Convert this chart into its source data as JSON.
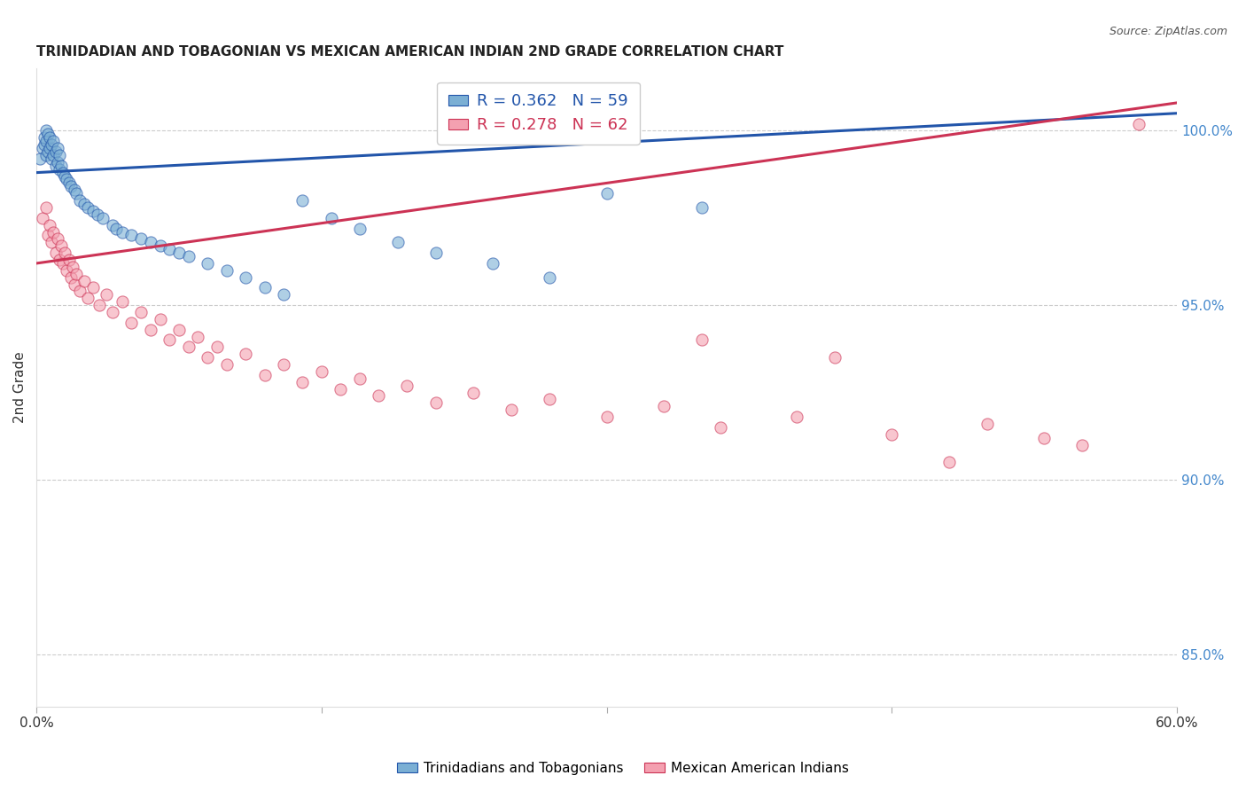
{
  "title": "TRINIDADIAN AND TOBAGONIAN VS MEXICAN AMERICAN INDIAN 2ND GRADE CORRELATION CHART",
  "source": "Source: ZipAtlas.com",
  "ylabel": "2nd Grade",
  "ylabel_right_ticks": [
    85.0,
    90.0,
    95.0,
    100.0
  ],
  "xlim": [
    0.0,
    60.0
  ],
  "ylim": [
    83.5,
    101.8
  ],
  "legend_blue_label": "Trinidadians and Tobagonians",
  "legend_pink_label": "Mexican American Indians",
  "R_blue": 0.362,
  "N_blue": 59,
  "R_pink": 0.278,
  "N_pink": 62,
  "blue_color": "#7BAFD4",
  "pink_color": "#F4A0B0",
  "trendline_blue": "#2255AA",
  "trendline_pink": "#CC3355",
  "blue_x": [
    0.2,
    0.3,
    0.4,
    0.4,
    0.5,
    0.5,
    0.5,
    0.6,
    0.6,
    0.7,
    0.7,
    0.8,
    0.8,
    0.9,
    0.9,
    1.0,
    1.0,
    1.1,
    1.1,
    1.2,
    1.2,
    1.3,
    1.4,
    1.5,
    1.6,
    1.7,
    1.8,
    2.0,
    2.1,
    2.3,
    2.5,
    2.7,
    3.0,
    3.2,
    3.5,
    4.0,
    4.2,
    4.5,
    5.0,
    5.5,
    6.0,
    6.5,
    7.0,
    7.5,
    8.0,
    9.0,
    10.0,
    11.0,
    12.0,
    13.0,
    14.0,
    15.5,
    17.0,
    19.0,
    21.0,
    24.0,
    27.0,
    30.0,
    35.0
  ],
  "blue_y": [
    99.2,
    99.5,
    99.6,
    99.8,
    99.3,
    99.7,
    100.0,
    99.4,
    99.9,
    99.5,
    99.8,
    99.2,
    99.6,
    99.3,
    99.7,
    99.0,
    99.4,
    99.1,
    99.5,
    98.9,
    99.3,
    99.0,
    98.8,
    98.7,
    98.6,
    98.5,
    98.4,
    98.3,
    98.2,
    98.0,
    97.9,
    97.8,
    97.7,
    97.6,
    97.5,
    97.3,
    97.2,
    97.1,
    97.0,
    96.9,
    96.8,
    96.7,
    96.6,
    96.5,
    96.4,
    96.2,
    96.0,
    95.8,
    95.5,
    95.3,
    98.0,
    97.5,
    97.2,
    96.8,
    96.5,
    96.2,
    95.8,
    98.2,
    97.8
  ],
  "pink_x": [
    0.3,
    0.5,
    0.6,
    0.7,
    0.8,
    0.9,
    1.0,
    1.1,
    1.2,
    1.3,
    1.4,
    1.5,
    1.6,
    1.7,
    1.8,
    1.9,
    2.0,
    2.1,
    2.3,
    2.5,
    2.7,
    3.0,
    3.3,
    3.7,
    4.0,
    4.5,
    5.0,
    5.5,
    6.0,
    6.5,
    7.0,
    7.5,
    8.0,
    8.5,
    9.0,
    9.5,
    10.0,
    11.0,
    12.0,
    13.0,
    14.0,
    15.0,
    16.0,
    17.0,
    18.0,
    19.5,
    21.0,
    23.0,
    25.0,
    27.0,
    30.0,
    33.0,
    36.0,
    40.0,
    45.0,
    50.0,
    55.0,
    58.0,
    35.0,
    42.0,
    48.0,
    53.0
  ],
  "pink_y": [
    97.5,
    97.8,
    97.0,
    97.3,
    96.8,
    97.1,
    96.5,
    96.9,
    96.3,
    96.7,
    96.2,
    96.5,
    96.0,
    96.3,
    95.8,
    96.1,
    95.6,
    95.9,
    95.4,
    95.7,
    95.2,
    95.5,
    95.0,
    95.3,
    94.8,
    95.1,
    94.5,
    94.8,
    94.3,
    94.6,
    94.0,
    94.3,
    93.8,
    94.1,
    93.5,
    93.8,
    93.3,
    93.6,
    93.0,
    93.3,
    92.8,
    93.1,
    92.6,
    92.9,
    92.4,
    92.7,
    92.2,
    92.5,
    92.0,
    92.3,
    91.8,
    92.1,
    91.5,
    91.8,
    91.3,
    91.6,
    91.0,
    100.2,
    94.0,
    93.5,
    90.5,
    91.2
  ]
}
